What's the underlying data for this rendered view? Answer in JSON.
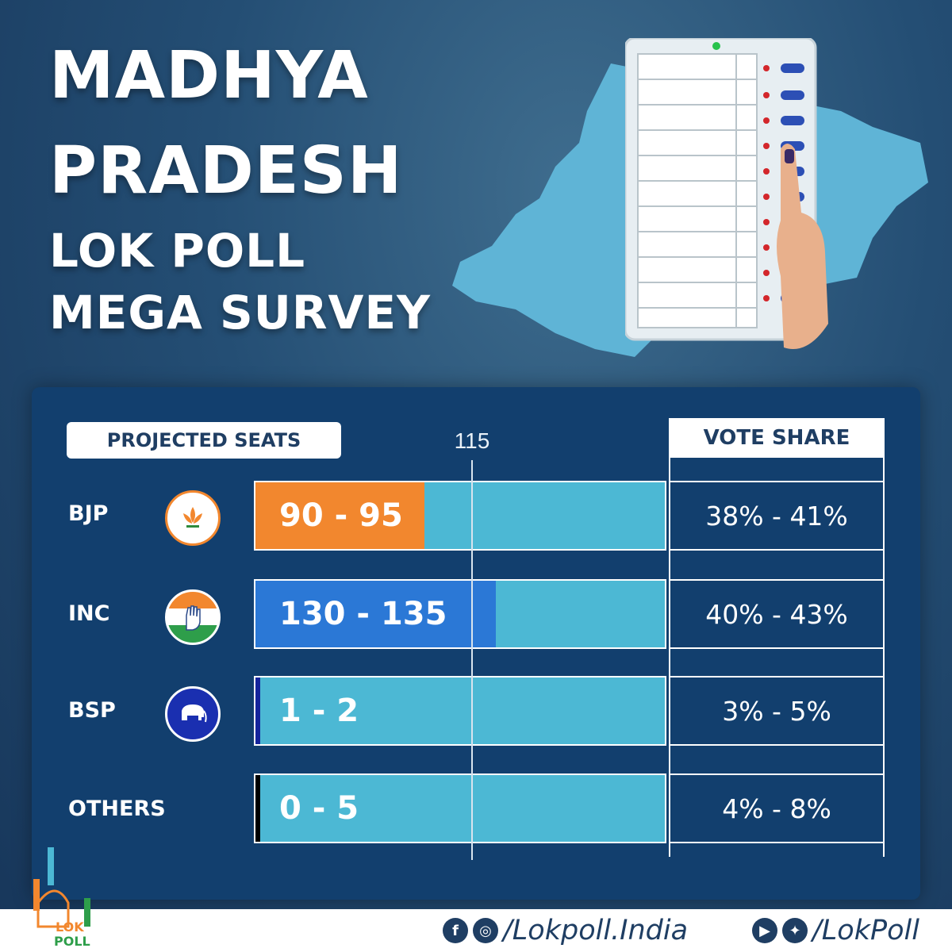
{
  "title": {
    "line1": "MADHYA",
    "line2": "PRADESH",
    "line3": "LOK POLL",
    "line4": "MEGA SURVEY"
  },
  "table": {
    "seats_header": "PROJECTED SEATS",
    "vote_share_header": "VOTE SHARE",
    "majority_mark_label": "115"
  },
  "chart_data": {
    "type": "bar",
    "orientation": "horizontal",
    "xlim": [
      0,
      230
    ],
    "reference_line": 115,
    "categories": [
      "BJP",
      "INC",
      "BSP",
      "OTHERS"
    ],
    "seat_ranges": [
      "90 - 95",
      "130 - 135",
      "1 - 2",
      "0 - 5"
    ],
    "values": [
      95,
      135,
      2,
      2
    ],
    "vote_share": [
      "38% - 41%",
      "40% - 43%",
      "3% - 5%",
      "4% - 8%"
    ],
    "colors": [
      "#f2872e",
      "#2b78d6",
      "#15249c",
      "#000000"
    ],
    "track_color": "#4cb8d4"
  },
  "parties": [
    {
      "label": "BJP",
      "logo_icon": "lotus-icon",
      "seats": "90 - 95",
      "vote": "38% - 41%"
    },
    {
      "label": "INC",
      "logo_icon": "hand-icon",
      "seats": "130 - 135",
      "vote": "40% - 43%"
    },
    {
      "label": "BSP",
      "logo_icon": "elephant-icon",
      "seats": "1 - 2",
      "vote": "3% - 5%"
    },
    {
      "label": "OTHERS",
      "logo_icon": "",
      "seats": "0 - 5",
      "vote": "4% - 8%"
    }
  ],
  "footer": {
    "brand_line1": "LOK",
    "brand_line2": "POLL",
    "handle_fb_ig": "/Lokpoll.India",
    "handle_yt_tw": "/LokPoll"
  }
}
